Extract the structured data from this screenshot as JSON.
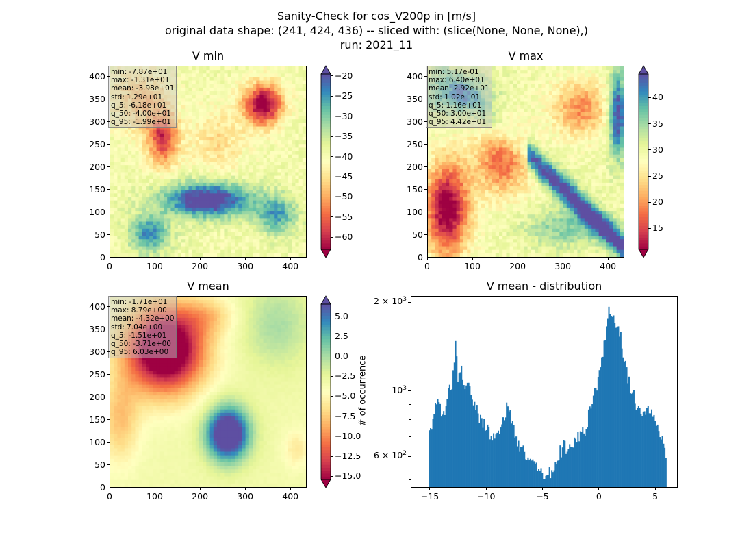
{
  "figure": {
    "title_lines": [
      "Sanity-Check for cos_V200p in [m/s]",
      "original data shape: (241, 424, 436) -- sliced with: (slice(None, None, None),)",
      "run: 2021_11"
    ]
  },
  "colors": {
    "colormap": "Spectral",
    "spectral_stops": [
      "#9e0142",
      "#d53e4f",
      "#f46d43",
      "#fdae61",
      "#fee08b",
      "#ffffbf",
      "#e6f598",
      "#abdda4",
      "#66c2a5",
      "#3288bd",
      "#5e4fa2"
    ],
    "hist_bar": "#1f77b4"
  },
  "chart_data": [
    {
      "type": "heatmap",
      "title": "V min",
      "xlim": [
        0,
        436
      ],
      "ylim": [
        0,
        424
      ],
      "xticks": [
        "0",
        "100",
        "200",
        "300",
        "400"
      ],
      "yticks": [
        "0",
        "50",
        "100",
        "150",
        "200",
        "250",
        "300",
        "350",
        "400"
      ],
      "colorbar": {
        "vmin": -63,
        "vmax": -19.5,
        "ticks": [
          "−20",
          "−25",
          "−30",
          "−35",
          "−40",
          "−45",
          "−50",
          "−55",
          "−60"
        ],
        "tick_values": [
          -20,
          -25,
          -30,
          -35,
          -40,
          -45,
          -50,
          -55,
          -60
        ],
        "extend": "both"
      },
      "stats": [
        "min: -7.87e+01",
        "max: -1.31e+01",
        "mean: -3.98e+01",
        "std: 1.29e+01",
        "q_5: -6.18e+01",
        "q_50: -4.00e+01",
        "q_95: -1.99e+01"
      ]
    },
    {
      "type": "heatmap",
      "title": "V max",
      "xlim": [
        0,
        436
      ],
      "ylim": [
        0,
        424
      ],
      "xticks": [
        "0",
        "100",
        "200",
        "300",
        "400"
      ],
      "yticks": [
        "0",
        "50",
        "100",
        "150",
        "200",
        "250",
        "300",
        "350",
        "400"
      ],
      "colorbar": {
        "vmin": 11,
        "vmax": 44.5,
        "ticks": [
          "15",
          "20",
          "25",
          "30",
          "35",
          "40"
        ],
        "tick_values": [
          15,
          20,
          25,
          30,
          35,
          40
        ],
        "extend": "both"
      },
      "stats": [
        "min: 5.17e-01",
        "max: 6.40e+01",
        "mean: 2.92e+01",
        "std: 1.02e+01",
        "q_5: 1.16e+01",
        "q_50: 3.00e+01",
        "q_95: 4.42e+01"
      ]
    },
    {
      "type": "heatmap",
      "title": "V mean",
      "xlim": [
        0,
        436
      ],
      "ylim": [
        0,
        424
      ],
      "xticks": [
        "0",
        "100",
        "200",
        "300",
        "400"
      ],
      "yticks": [
        "0",
        "50",
        "100",
        "150",
        "200",
        "250",
        "300",
        "350",
        "400"
      ],
      "colorbar": {
        "vmin": -15.4,
        "vmax": 6.5,
        "ticks": [
          "5.0",
          "2.5",
          "0.0",
          "−2.5",
          "−5.0",
          "−7.5",
          "−10.0",
          "−12.5",
          "−15.0"
        ],
        "tick_values": [
          5,
          2.5,
          0,
          -2.5,
          -5,
          -7.5,
          -10,
          -12.5,
          -15
        ],
        "extend": "both"
      },
      "stats": [
        "min: -1.71e+01",
        "max: 8.79e+00",
        "mean: -4.32e+00",
        "std: 7.04e+00",
        "q_5: -1.51e+01",
        "q_50: -3.71e+00",
        "q_95: 6.03e+00"
      ]
    },
    {
      "type": "bar",
      "title": "V mean - distribution",
      "ylabel": "# of occurrence",
      "yscale": "log",
      "xlim": [
        -16.7,
        7.0
      ],
      "ylim": [
        470,
        2100
      ],
      "xticks": [
        "−15",
        "−10",
        "−5",
        "0",
        "5"
      ],
      "xtick_values": [
        -15,
        -10,
        -5,
        0,
        5
      ],
      "ytick_labels": [
        {
          "base": "6 × 10",
          "exp": "2",
          "value": 600
        },
        {
          "base": "10",
          "exp": "3",
          "value": 1000
        },
        {
          "base": "2 × 10",
          "exp": "3",
          "value": 2000
        }
      ],
      "bin_range": [
        -15.1,
        6.0
      ],
      "anchors": [
        [
          -15.1,
          760
        ],
        [
          -14.8,
          740
        ],
        [
          -14.5,
          880
        ],
        [
          -14.2,
          900
        ],
        [
          -14.0,
          840
        ],
        [
          -13.7,
          870
        ],
        [
          -13.5,
          920
        ],
        [
          -13.3,
          1000
        ],
        [
          -13.1,
          1020
        ],
        [
          -12.9,
          1200
        ],
        [
          -12.7,
          1480
        ],
        [
          -12.5,
          1100
        ],
        [
          -12.3,
          1220
        ],
        [
          -12.1,
          1120
        ],
        [
          -11.9,
          1050
        ],
        [
          -11.6,
          1020
        ],
        [
          -11.3,
          960
        ],
        [
          -11.0,
          900
        ],
        [
          -10.7,
          830
        ],
        [
          -10.4,
          800
        ],
        [
          -10.1,
          770
        ],
        [
          -9.8,
          730
        ],
        [
          -9.5,
          680
        ],
        [
          -9.2,
          700
        ],
        [
          -8.9,
          740
        ],
        [
          -8.6,
          800
        ],
        [
          -8.3,
          860
        ],
        [
          -8.1,
          890
        ],
        [
          -7.9,
          850
        ],
        [
          -7.6,
          760
        ],
        [
          -7.3,
          700
        ],
        [
          -7.0,
          650
        ],
        [
          -6.6,
          620
        ],
        [
          -6.2,
          590
        ],
        [
          -5.8,
          570
        ],
        [
          -5.4,
          550
        ],
        [
          -5.0,
          530
        ],
        [
          -4.7,
          520
        ],
        [
          -4.4,
          530
        ],
        [
          -4.1,
          545
        ],
        [
          -3.8,
          560
        ],
        [
          -3.5,
          625
        ],
        [
          -3.2,
          640
        ],
        [
          -2.9,
          650
        ],
        [
          -2.6,
          640
        ],
        [
          -2.3,
          660
        ],
        [
          -2.0,
          680
        ],
        [
          -1.7,
          690
        ],
        [
          -1.4,
          720
        ],
        [
          -1.1,
          760
        ],
        [
          -0.8,
          860
        ],
        [
          -0.5,
          960
        ],
        [
          -0.2,
          1050
        ],
        [
          0.1,
          1150
        ],
        [
          0.4,
          1350
        ],
        [
          0.7,
          1600
        ],
        [
          0.9,
          1880
        ],
        [
          1.1,
          1820
        ],
        [
          1.4,
          1700
        ],
        [
          1.7,
          1600
        ],
        [
          2.0,
          1500
        ],
        [
          2.3,
          1250
        ],
        [
          2.6,
          1100
        ],
        [
          2.9,
          1000
        ],
        [
          3.2,
          930
        ],
        [
          3.5,
          900
        ],
        [
          3.8,
          870
        ],
        [
          4.1,
          860
        ],
        [
          4.4,
          840
        ],
        [
          4.7,
          830
        ],
        [
          5.0,
          800
        ],
        [
          5.3,
          740
        ],
        [
          5.6,
          700
        ],
        [
          5.8,
          640
        ],
        [
          6.0,
          600
        ]
      ]
    }
  ]
}
